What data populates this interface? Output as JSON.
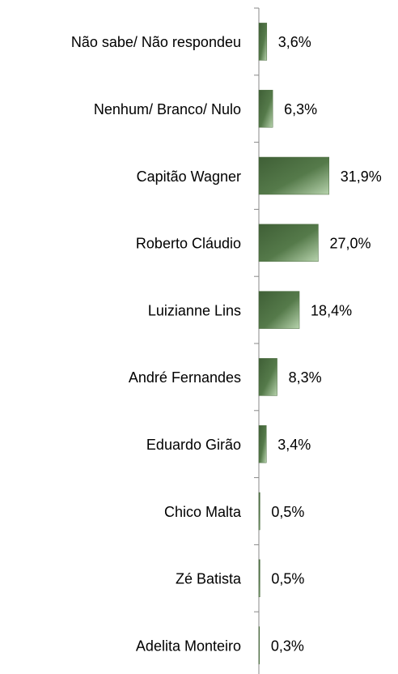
{
  "chart_data": {
    "type": "barh",
    "categories": [
      "Não sabe/ Não respondeu",
      "Nenhum/ Branco/ Nulo",
      "Capitão Wagner",
      "Roberto Cláudio",
      "Luizianne Lins",
      "André Fernandes",
      "Eduardo Girão",
      "Chico Malta",
      "Zé Batista",
      "Adelita Monteiro"
    ],
    "values": [
      3.6,
      6.3,
      31.9,
      27.0,
      18.4,
      8.3,
      3.4,
      0.5,
      0.5,
      0.3
    ],
    "value_labels": [
      "3,6%",
      "6,3%",
      "31,9%",
      "27,0%",
      "18,4%",
      "8,3%",
      "3,4%",
      "0,5%",
      "0,5%",
      "0,3%"
    ],
    "color": "#4a6b3e"
  }
}
